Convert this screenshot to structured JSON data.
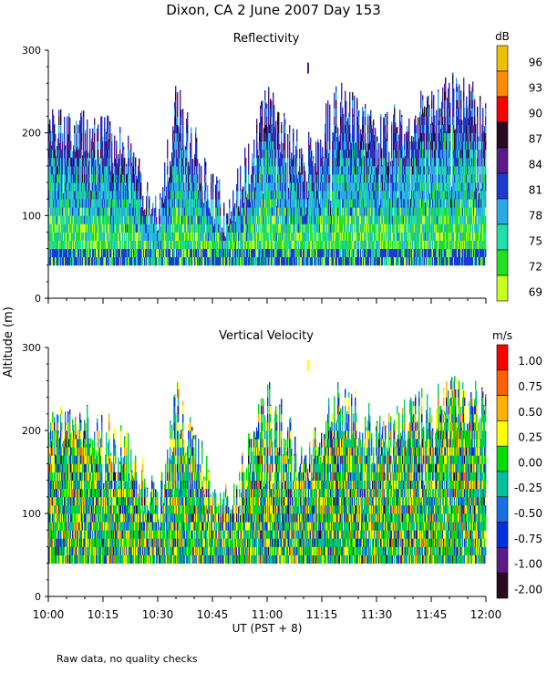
{
  "chart_data": [
    {
      "type": "heatmap",
      "title": "Dixon, CA  2 June 2007  Day 153",
      "panel_title": "Reflectivity",
      "ylabel": "Altitude (m)",
      "xlabel": "UT  (PST + 8)",
      "x_ticks": [
        "10:00",
        "10:15",
        "10:30",
        "10:45",
        "11:00",
        "11:15",
        "11:30",
        "11:45",
        "12:00"
      ],
      "y_ticks": [
        "0",
        "100",
        "200",
        "300"
      ],
      "xlim": [
        0,
        120
      ],
      "ylim": [
        0,
        300
      ],
      "colorbar": {
        "unit": "dB",
        "labels": [
          "96",
          "93",
          "90",
          "87",
          "84",
          "81",
          "78",
          "75",
          "72",
          "69"
        ],
        "colors": [
          "#f0c000",
          "#ff8c00",
          "#ff0000",
          "#2a0a1e",
          "#5a1a8a",
          "#1a3ad0",
          "#2aa8e8",
          "#1ee0a8",
          "#20e020",
          "#c8ff20"
        ]
      },
      "echo_base_m": 40,
      "echo_top_m_by_time": [
        {
          "t": 0,
          "top": 200
        },
        {
          "t": 10,
          "top": 200
        },
        {
          "t": 20,
          "top": 180
        },
        {
          "t": 30,
          "top": 100
        },
        {
          "t": 35,
          "top": 230
        },
        {
          "t": 45,
          "top": 120
        },
        {
          "t": 50,
          "top": 100
        },
        {
          "t": 60,
          "top": 230
        },
        {
          "t": 70,
          "top": 160
        },
        {
          "t": 80,
          "top": 230
        },
        {
          "t": 90,
          "top": 190
        },
        {
          "t": 100,
          "top": 210
        },
        {
          "t": 110,
          "top": 240
        },
        {
          "t": 120,
          "top": 220
        }
      ]
    },
    {
      "type": "heatmap",
      "panel_title": "Vertical Velocity",
      "x_ticks": [
        "10:00",
        "10:15",
        "10:30",
        "10:45",
        "11:00",
        "11:15",
        "11:30",
        "11:45",
        "12:00"
      ],
      "y_ticks": [
        "0",
        "100",
        "200",
        "300"
      ],
      "xlim": [
        0,
        120
      ],
      "ylim": [
        0,
        300
      ],
      "colorbar": {
        "unit": "m/s",
        "labels": [
          "1.00",
          "0.75",
          "0.50",
          "0.25",
          "0.00",
          "-0.25",
          "-0.50",
          "-0.75",
          "-1.00",
          "-2.00"
        ],
        "colors": [
          "#ff0000",
          "#ff6000",
          "#ffb000",
          "#ffff00",
          "#00e000",
          "#00c0a0",
          "#1a70e0",
          "#0030e0",
          "#5a1a8a",
          "#2a0a1e"
        ]
      },
      "echo_base_m": 40
    }
  ],
  "footer_note": "Raw data, no quality checks"
}
